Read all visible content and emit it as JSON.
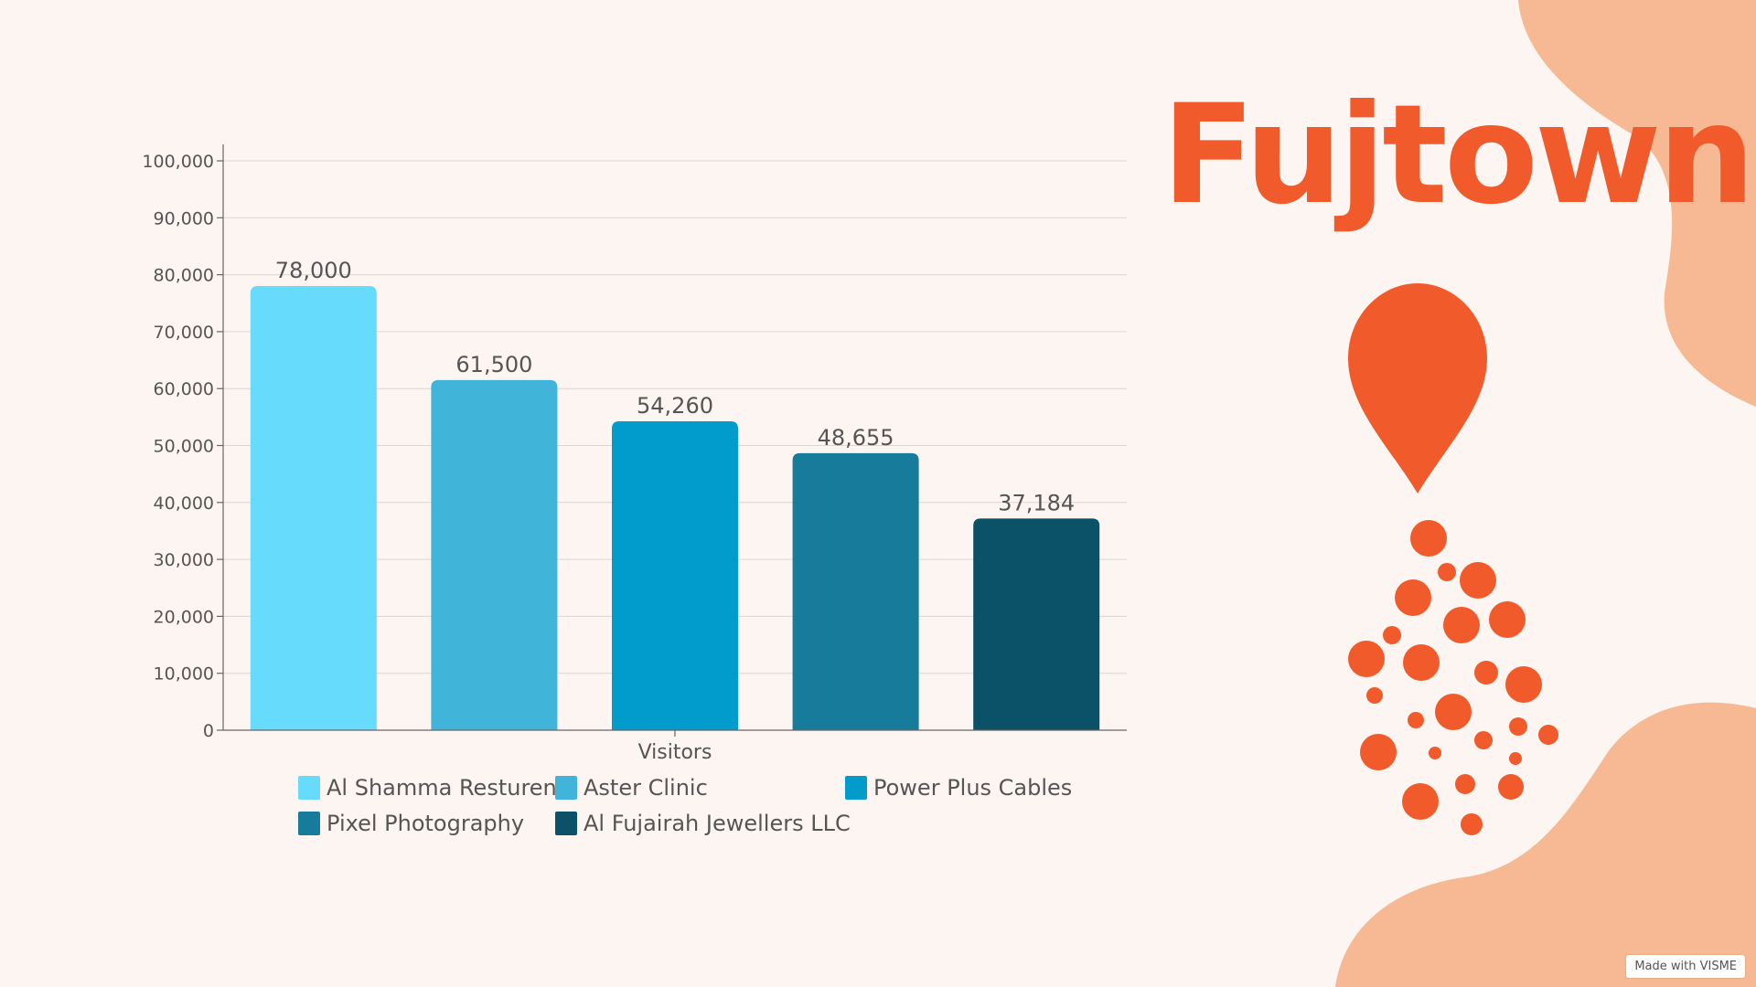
{
  "brand": {
    "title": "Fujtown",
    "accent_color": "#f15a2b",
    "blob_color": "#f6b993",
    "icon": "map-pin-icon"
  },
  "watermark": "Made with VISME",
  "chart_data": {
    "type": "bar",
    "categories": [
      "Al Shamma Resturent",
      "Aster Clinic",
      "Power Plus Cables",
      "Pixel Photography",
      "Al Fujairah Jewellers LLC"
    ],
    "values": [
      78000,
      61500,
      54260,
      48655,
      37184
    ],
    "value_labels": [
      "78,000",
      "61,500",
      "54,260",
      "48,655",
      "37,184"
    ],
    "colors": [
      "#66dbfc",
      "#40b4d9",
      "#019ccb",
      "#177c9b",
      "#0b5168"
    ],
    "xlabel": "Visitors",
    "ylabel": "",
    "ylim": [
      0,
      100000
    ],
    "yticks": [
      0,
      10000,
      20000,
      30000,
      40000,
      50000,
      60000,
      70000,
      80000,
      90000,
      100000
    ],
    "ytick_labels": [
      "0",
      "10,000",
      "20,000",
      "30,000",
      "40,000",
      "50,000",
      "60,000",
      "70,000",
      "80,000",
      "90,000",
      "100,000"
    ],
    "grid": true,
    "legend_position": "bottom"
  }
}
